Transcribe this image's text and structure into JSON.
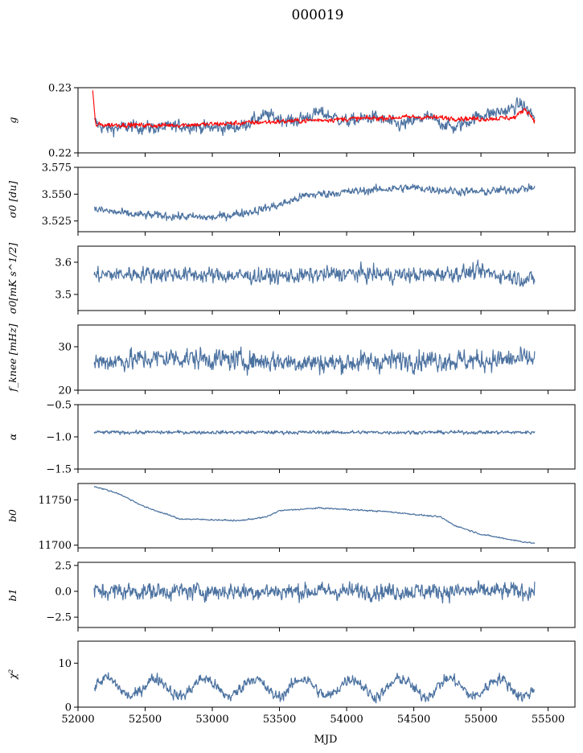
{
  "figure": {
    "title": "000019"
  },
  "chart_data": {
    "type": "line",
    "xlabel": "MJD",
    "xlim": [
      52000,
      55700
    ],
    "xticks": [
      52000,
      52500,
      53000,
      53500,
      54000,
      54500,
      55000,
      55500
    ],
    "xtick_labels": [
      "52000",
      "52500",
      "53000",
      "53500",
      "54000",
      "54500",
      "55000",
      "55500"
    ],
    "x_range_data": [
      52110,
      55400
    ],
    "colors": {
      "series": "#4c72a0",
      "highlight": "#ff0000"
    },
    "panels": [
      {
        "id": "g",
        "ylabel": "g",
        "ylim": [
          0.22,
          0.23
        ],
        "yticks": [
          0.22,
          0.23
        ],
        "ytick_labels": [
          "0.22",
          "0.23"
        ],
        "series": [
          {
            "color": "#4c72a0",
            "x": [
              52120,
              52200,
              52400,
              52600,
              52800,
              53000,
              53200,
              53400,
              53600,
              53800,
              54000,
              54200,
              54400,
              54600,
              54800,
              55000,
              55200,
              55300,
              55400
            ],
            "y": [
              0.2248,
              0.2237,
              0.224,
              0.2238,
              0.2242,
              0.2238,
              0.224,
              0.2258,
              0.2248,
              0.2262,
              0.2248,
              0.2255,
              0.2242,
              0.2255,
              0.2238,
              0.2258,
              0.2265,
              0.2275,
              0.2255
            ],
            "noise": 0.0009
          },
          {
            "color": "#ff0000",
            "x": [
              52110,
              52130,
              52300,
              52600,
              53000,
              53500,
              54000,
              54500,
              55000,
              55250,
              55330,
              55400
            ],
            "y": [
              0.2295,
              0.2243,
              0.2243,
              0.2242,
              0.2244,
              0.2248,
              0.2252,
              0.2255,
              0.2252,
              0.2254,
              0.2268,
              0.225
            ],
            "noise": 0.00035
          }
        ]
      },
      {
        "id": "sigma0-du",
        "ylabel": "σ0 [du]",
        "ylim": [
          3.515,
          3.575
        ],
        "yticks": [
          3.525,
          3.55,
          3.575
        ],
        "ytick_labels": [
          "3.525",
          "3.550",
          "3.575"
        ],
        "series": [
          {
            "color": "#4c72a0",
            "x": [
              52120,
              52400,
              52800,
              53000,
              53300,
              53500,
              53700,
              54000,
              54300,
              54500,
              54800,
              55000,
              55200,
              55400
            ],
            "y": [
              3.536,
              3.531,
              3.529,
              3.528,
              3.534,
              3.54,
              3.549,
              3.552,
              3.555,
              3.556,
              3.553,
              3.552,
              3.554,
              3.556
            ],
            "noise": 0.0035
          }
        ]
      },
      {
        "id": "sigma0-mk",
        "ylabel": "σ0[mK s^1/2]",
        "ylim": [
          3.45,
          3.65
        ],
        "yticks": [
          3.5,
          3.6
        ],
        "ytick_labels": [
          "3.5",
          "3.6"
        ],
        "series": [
          {
            "color": "#4c72a0",
            "x": [
              52120,
              52500,
              53000,
              53500,
              54000,
              54500,
              55000,
              55300,
              55400
            ],
            "y": [
              3.56,
              3.565,
              3.56,
              3.555,
              3.565,
              3.56,
              3.57,
              3.55,
              3.545
            ],
            "noise": 0.022
          }
        ]
      },
      {
        "id": "fknee",
        "ylabel": "f_knee [mHz]",
        "ylim": [
          20,
          35
        ],
        "yticks": [
          20,
          30
        ],
        "ytick_labels": [
          "20",
          "30"
        ],
        "series": [
          {
            "color": "#4c72a0",
            "x": [
              52120,
              52700,
              53300,
              53900,
              54500,
              55000,
              55400
            ],
            "y": [
              26.5,
              27.5,
              26.8,
              26.2,
              27.0,
              26.8,
              27.2
            ],
            "noise": 2.2
          }
        ]
      },
      {
        "id": "alpha",
        "ylabel": "α",
        "ylim": [
          -1.5,
          -0.5
        ],
        "yticks": [
          -1.5,
          -1.0,
          -0.5
        ],
        "ytick_labels": [
          "−1.5",
          "−1.0",
          "−0.5"
        ],
        "series": [
          {
            "color": "#4c72a0",
            "x": [
              52120,
              53000,
              54000,
              55000,
              55400
            ],
            "y": [
              -0.93,
              -0.93,
              -0.93,
              -0.93,
              -0.93
            ],
            "noise": 0.025
          }
        ]
      },
      {
        "id": "b0",
        "ylabel": "b0",
        "ylim": [
          11697,
          11768
        ],
        "yticks": [
          11700,
          11750
        ],
        "ytick_labels": [
          "11700",
          "11750"
        ],
        "series": [
          {
            "color": "#4c72a0",
            "x": [
              52120,
              52300,
              52500,
              52700,
              52750,
              53000,
              53200,
              53400,
              53500,
              53800,
              54300,
              54700,
              54800,
              55000,
              55300,
              55400
            ],
            "y": [
              11765,
              11757,
              11742,
              11732,
              11729,
              11728,
              11727,
              11731,
              11738,
              11741,
              11737,
              11731,
              11722,
              11712,
              11704,
              11702
            ],
            "noise": 0.7
          }
        ]
      },
      {
        "id": "b1",
        "ylabel": "b1",
        "ylim": [
          -3.5,
          2.8
        ],
        "yticks": [
          -2.5,
          0.0,
          2.5
        ],
        "ytick_labels": [
          "−2.5",
          "0.0",
          "2.5"
        ],
        "series": [
          {
            "color": "#4c72a0",
            "x": [
              52120,
              53000,
              54000,
              55000,
              55400
            ],
            "y": [
              0.0,
              0.0,
              0.0,
              0.0,
              0.0
            ],
            "noise": 0.75
          }
        ]
      },
      {
        "id": "chi2",
        "ylabel": "χ²",
        "ylim": [
          0,
          15
        ],
        "yticks": [
          0,
          10
        ],
        "ytick_labels": [
          "0",
          "10"
        ],
        "series": [
          {
            "color": "#4c72a0",
            "x": [
              52120,
              53000,
              54000,
              55000,
              55400
            ],
            "y": [
              4.5,
              4.5,
              4.5,
              4.5,
              4.5
            ],
            "noise": 1.2,
            "oscillation": {
              "amplitude": 2.0,
              "period_days": 365
            }
          }
        ]
      }
    ]
  }
}
